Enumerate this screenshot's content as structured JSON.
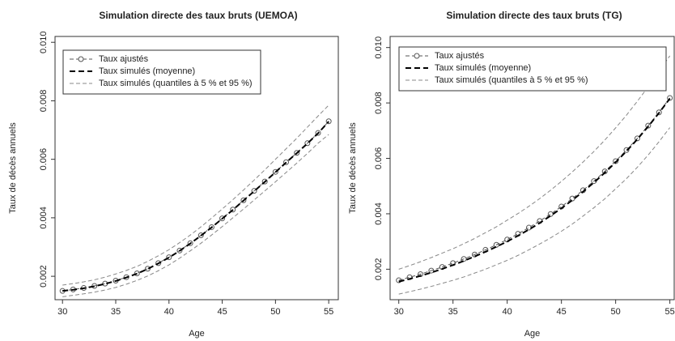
{
  "chart_data": [
    {
      "type": "line",
      "title": "Simulation directe des taux bruts (UEMOA)",
      "y_label": "Taux de décès annuels",
      "x_label": "Age",
      "x": [
        30,
        31,
        32,
        33,
        34,
        35,
        36,
        37,
        38,
        39,
        40,
        41,
        42,
        43,
        44,
        45,
        46,
        47,
        48,
        49,
        50,
        51,
        52,
        53,
        54,
        55
      ],
      "xlim": [
        29.3,
        55.9
      ],
      "xticks": [
        30,
        35,
        40,
        45,
        50,
        55
      ],
      "ylim": [
        0.0012,
        0.0102
      ],
      "yticks": [
        0.002,
        0.004,
        0.006,
        0.008,
        {
          "value": 0.01,
          "label": "0.010"
        }
      ],
      "series": [
        {
          "name": "Taux ajustés",
          "color": "#555555",
          "values": [
            0.0015,
            0.00155,
            0.0016,
            0.00167,
            0.00175,
            0.00185,
            0.00197,
            0.0021,
            0.00226,
            0.00245,
            0.00265,
            0.00288,
            0.00313,
            0.0034,
            0.00368,
            0.00398,
            0.00428,
            0.0046,
            0.00492,
            0.00524,
            0.00557,
            0.0059,
            0.00622,
            0.00655,
            0.0069,
            0.0073
          ]
        },
        {
          "name": "Taux simulés (moyenne)",
          "color": "#000000",
          "values": [
            0.0015,
            0.00154,
            0.00159,
            0.00166,
            0.00174,
            0.00184,
            0.00196,
            0.00209,
            0.00225,
            0.00244,
            0.00264,
            0.00287,
            0.00312,
            0.00339,
            0.00367,
            0.00397,
            0.00427,
            0.00459,
            0.00491,
            0.00523,
            0.00556,
            0.00589,
            0.00621,
            0.00654,
            0.00689,
            0.00729
          ]
        },
        {
          "name": "Taux simulés (quantiles à 5 % et 95 %)",
          "color": "#888888",
          "values": [
            0.0013,
            0.00135,
            0.0014,
            0.00146,
            0.00153,
            0.00162,
            0.00173,
            0.00186,
            0.00201,
            0.00219,
            0.00239,
            0.00262,
            0.00287,
            0.00313,
            0.00341,
            0.0037,
            0.004,
            0.0043,
            0.00461,
            0.00492,
            0.00523,
            0.00555,
            0.00587,
            0.0062,
            0.00655,
            0.00685
          ],
          "upper": [
            0.0017,
            0.00175,
            0.00181,
            0.00188,
            0.00197,
            0.00208,
            0.0022,
            0.00234,
            0.00251,
            0.0027,
            0.00291,
            0.00315,
            0.00341,
            0.00369,
            0.00399,
            0.0043,
            0.00462,
            0.00495,
            0.00529,
            0.00564,
            0.006,
            0.00636,
            0.00672,
            0.0071,
            0.00748,
            0.00785
          ]
        }
      ]
    },
    {
      "type": "line",
      "title": "Simulation directe des taux bruts (TG)",
      "y_label": "Taux de décès annuels",
      "x_label": "Age",
      "x": [
        30,
        31,
        32,
        33,
        34,
        35,
        36,
        37,
        38,
        39,
        40,
        41,
        42,
        43,
        44,
        45,
        46,
        47,
        48,
        49,
        50,
        51,
        52,
        53,
        54,
        55
      ],
      "xlim": [
        29.2,
        55.4
      ],
      "xticks": [
        30,
        35,
        40,
        45,
        50,
        55
      ],
      "ylim": [
        0.0009,
        0.0104
      ],
      "yticks": [
        0.002,
        0.004,
        0.006,
        0.008,
        {
          "value": 0.01,
          "label": "0.010"
        }
      ],
      "series": [
        {
          "name": "Taux ajustés",
          "color": "#555555",
          "values": [
            0.0016,
            0.00171,
            0.00182,
            0.00195,
            0.00208,
            0.00222,
            0.00237,
            0.00253,
            0.0027,
            0.00288,
            0.00307,
            0.00328,
            0.0035,
            0.00374,
            0.00399,
            0.00426,
            0.00455,
            0.00485,
            0.00518,
            0.00553,
            0.0059,
            0.0063,
            0.00672,
            0.00718,
            0.00766,
            0.00818
          ]
        },
        {
          "name": "Taux simulés (moyenne)",
          "color": "#000000",
          "values": [
            0.00155,
            0.00165,
            0.00176,
            0.00188,
            0.00201,
            0.00215,
            0.0023,
            0.00246,
            0.00263,
            0.00281,
            0.003,
            0.00321,
            0.00343,
            0.00367,
            0.00393,
            0.0042,
            0.00449,
            0.0048,
            0.00513,
            0.00548,
            0.00586,
            0.00626,
            0.00669,
            0.00715,
            0.00764,
            0.00816
          ]
        },
        {
          "name": "Taux simulés (quantiles à 5 % et 95 %)",
          "color": "#888888",
          "values": [
            0.0011,
            0.00119,
            0.00128,
            0.00138,
            0.00149,
            0.0016,
            0.00172,
            0.00186,
            0.002,
            0.00216,
            0.00232,
            0.0025,
            0.0027,
            0.00291,
            0.00313,
            0.00337,
            0.00363,
            0.00392,
            0.00422,
            0.00454,
            0.0049,
            0.00527,
            0.00568,
            0.00612,
            0.0066,
            0.00711
          ],
          "upper": [
            0.002,
            0.00213,
            0.00227,
            0.00242,
            0.00258,
            0.00274,
            0.00292,
            0.00311,
            0.00332,
            0.00353,
            0.00377,
            0.00401,
            0.00427,
            0.00455,
            0.00485,
            0.00517,
            0.00551,
            0.00587,
            0.00625,
            0.00666,
            0.0071,
            0.00756,
            0.00806,
            0.00858,
            0.00915,
            0.0097
          ]
        }
      ]
    }
  ]
}
